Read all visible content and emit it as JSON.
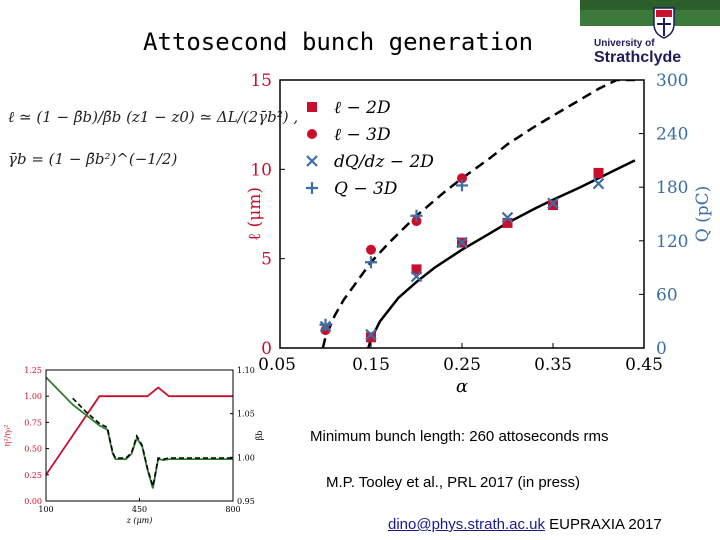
{
  "slide": {
    "title": "Attosecond bunch generation",
    "logo_text_line1": "University of",
    "logo_text_line2": "Strathclyde",
    "formula_1": "ℓ ≃ (1 − β̄b)/β̄b (z1 − z0) ≃ ΔL/(2γ̄b²) ,",
    "formula_2": "γ̄b = (1 − β̄b²)^(−1/2)",
    "caption_length": "Minimum bunch length: 260 attoseconds rms",
    "caption_reference": "M.P. Tooley et al., PRL 2017 (in press)",
    "footer_email": "dino@phys.strath.ac.uk",
    "footer_event": "EUPRAXIA 2017",
    "colors": {
      "red": "#c8102e",
      "blue": "#3a6ea5",
      "green": "#2e7d32",
      "logo_green": "#2b5e2b"
    }
  },
  "chart_data": [
    {
      "type": "scatter",
      "xlabel": "α",
      "ylabel": "ℓ (μm)",
      "ylabel_right": "Q (pC)",
      "xlim": [
        0.05,
        0.45
      ],
      "ylim": [
        0,
        15
      ],
      "ylim_right": [
        0,
        300
      ],
      "x_ticks": [
        "0.05",
        "0.15",
        "0.25",
        "0.35",
        "0.45"
      ],
      "x_tick_values": [
        0.05,
        0.15,
        0.25,
        0.35,
        0.45
      ],
      "y_ticks": [
        "0",
        "5",
        "10",
        "15"
      ],
      "y_tick_values": [
        0,
        5,
        10,
        15
      ],
      "y_right_ticks": [
        "0",
        "60",
        "120",
        "180",
        "240",
        "300"
      ],
      "y_right_tick_values": [
        0,
        60,
        120,
        180,
        240,
        300
      ],
      "legend_position": "top-left",
      "series": [
        {
          "name": "ℓ − 2D",
          "marker": "square",
          "color": "#c8102e",
          "axis": "left",
          "x": [
            0.15,
            0.2,
            0.25,
            0.3,
            0.35,
            0.4
          ],
          "y": [
            0.6,
            4.4,
            5.9,
            7.0,
            8.0,
            9.8
          ]
        },
        {
          "name": "ℓ − 3D",
          "marker": "circle",
          "color": "#c8102e",
          "axis": "left",
          "x": [
            0.1,
            0.15,
            0.2,
            0.25
          ],
          "y": [
            1.0,
            5.5,
            7.1,
            9.5
          ]
        },
        {
          "name": "dQ/dz − 2D",
          "marker": "x",
          "color": "#3a6ea5",
          "axis": "right",
          "x": [
            0.1,
            0.15,
            0.2,
            0.25,
            0.3,
            0.35,
            0.4
          ],
          "y": [
            24,
            15,
            80,
            118,
            146,
            162,
            184
          ]
        },
        {
          "name": "Q − 3D",
          "marker": "plus",
          "color": "#3a6ea5",
          "axis": "right",
          "x": [
            0.1,
            0.15,
            0.2,
            0.25
          ],
          "y": [
            26,
            96,
            148,
            182
          ]
        }
      ],
      "curves": [
        {
          "style": "dashed",
          "color": "#000000",
          "x": [
            0.097,
            0.1,
            0.11,
            0.12,
            0.13,
            0.15,
            0.17,
            0.2,
            0.23,
            0.25,
            0.28,
            0.3,
            0.33,
            0.35,
            0.37,
            0.4,
            0.42,
            0.44
          ],
          "y": [
            0.0,
            0.6,
            1.8,
            2.7,
            3.4,
            4.8,
            5.9,
            7.4,
            8.7,
            9.5,
            10.6,
            11.4,
            12.4,
            13.0,
            13.6,
            14.5,
            15.0,
            15.0
          ]
        },
        {
          "style": "solid",
          "color": "#000000",
          "x": [
            0.147,
            0.15,
            0.16,
            0.18,
            0.2,
            0.22,
            0.25,
            0.28,
            0.3,
            0.33,
            0.35,
            0.38,
            0.4,
            0.42,
            0.44
          ],
          "y": [
            0.0,
            0.5,
            1.5,
            2.8,
            3.7,
            4.5,
            5.5,
            6.4,
            7.0,
            7.8,
            8.3,
            9.0,
            9.5,
            10.0,
            10.5
          ]
        }
      ]
    },
    {
      "type": "line",
      "xlabel": "z (μm)",
      "ylabel": "η²/η₀²",
      "ylabel_right": "β̄b",
      "xlim": [
        100,
        800
      ],
      "ylim": [
        0,
        1.25
      ],
      "ylim_right": [
        0.95,
        1.1
      ],
      "x_ticks": [
        "100",
        "450",
        "800"
      ],
      "x_tick_values": [
        100,
        450,
        800
      ],
      "y_ticks": [
        "0.00",
        "0.25",
        "0.50",
        "0.75",
        "1.00",
        "1.25"
      ],
      "y_tick_values": [
        0,
        0.25,
        0.5,
        0.75,
        1.0,
        1.25
      ],
      "y_right_ticks": [
        "0.95",
        "1.00",
        "1.05",
        "1.10"
      ],
      "y_right_tick_values": [
        0.95,
        1.0,
        1.05,
        1.1
      ],
      "series": [
        {
          "color": "#c8102e",
          "axis": "right",
          "style": "solid",
          "x": [
            100,
            300,
            400,
            480,
            500,
            520,
            540,
            560,
            800
          ],
          "y": [
            0.98,
            1.07,
            1.07,
            1.07,
            1.075,
            1.08,
            1.075,
            1.07,
            1.07
          ]
        },
        {
          "color": "#2e7d32",
          "axis": "left",
          "style": "solid",
          "x": [
            100,
            150,
            200,
            250,
            300,
            330,
            350,
            360,
            380,
            400,
            420,
            440,
            460,
            480,
            500,
            520,
            540,
            560,
            600,
            700,
            800
          ],
          "y": [
            1.18,
            1.05,
            0.92,
            0.82,
            0.72,
            0.68,
            0.45,
            0.4,
            0.4,
            0.4,
            0.45,
            0.6,
            0.52,
            0.3,
            0.12,
            0.4,
            0.39,
            0.4,
            0.4,
            0.4,
            0.4
          ]
        },
        {
          "color": "#000000",
          "axis": "left",
          "style": "dashed",
          "x": [
            200,
            250,
            300,
            330,
            350,
            360,
            380,
            400,
            420,
            440,
            460,
            480,
            500,
            520,
            540,
            560,
            600,
            700,
            800
          ],
          "y": [
            0.98,
            0.85,
            0.74,
            0.7,
            0.46,
            0.41,
            0.41,
            0.41,
            0.46,
            0.62,
            0.53,
            0.31,
            0.14,
            0.41,
            0.4,
            0.41,
            0.41,
            0.41,
            0.41
          ]
        }
      ]
    }
  ]
}
